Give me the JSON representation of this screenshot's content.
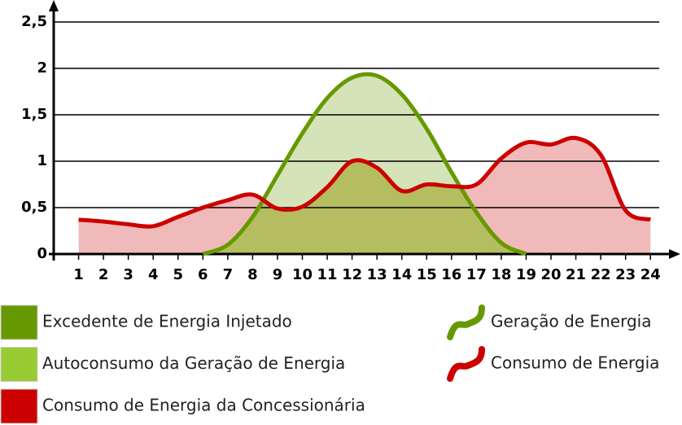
{
  "chart_data": {
    "type": "line",
    "x": [
      1,
      2,
      3,
      4,
      5,
      6,
      7,
      8,
      9,
      10,
      11,
      12,
      13,
      14,
      15,
      16,
      17,
      18,
      19,
      20,
      21,
      22,
      23,
      24
    ],
    "xlim": [
      0,
      24.5
    ],
    "ylim": [
      0,
      2.5
    ],
    "yticks": [
      0,
      {
        "value": 0.5,
        "label": "0,5"
      },
      1,
      {
        "value": 1.5,
        "label": "1,5"
      },
      2,
      {
        "value": 2.5,
        "label": "2,5"
      }
    ],
    "grid": true,
    "series": [
      {
        "name": "Geração de Energia",
        "color": "#669900",
        "values": [
          null,
          null,
          null,
          null,
          null,
          0,
          0.1,
          0.4,
          0.85,
          1.3,
          1.68,
          1.9,
          1.92,
          1.72,
          1.35,
          0.88,
          0.45,
          0.12,
          0,
          null,
          null,
          null,
          null,
          null
        ]
      },
      {
        "name": "Consumo de Energia",
        "color": "#cc0000",
        "values": [
          0.37,
          0.35,
          0.32,
          0.3,
          0.4,
          0.5,
          0.58,
          0.64,
          0.49,
          0.51,
          0.72,
          1.0,
          0.93,
          0.68,
          0.75,
          0.73,
          0.75,
          1.03,
          1.2,
          1.18,
          1.25,
          1.07,
          0.47,
          0.37
        ]
      }
    ],
    "areas": [
      {
        "name": "Excedente de Energia Injetado",
        "color": "#669900"
      },
      {
        "name": "Autoconsumo da Geração de Energia",
        "color": "#99cc33"
      },
      {
        "name": "Consumo de Energia da Concessionária",
        "color": "#cc0000"
      }
    ]
  }
}
